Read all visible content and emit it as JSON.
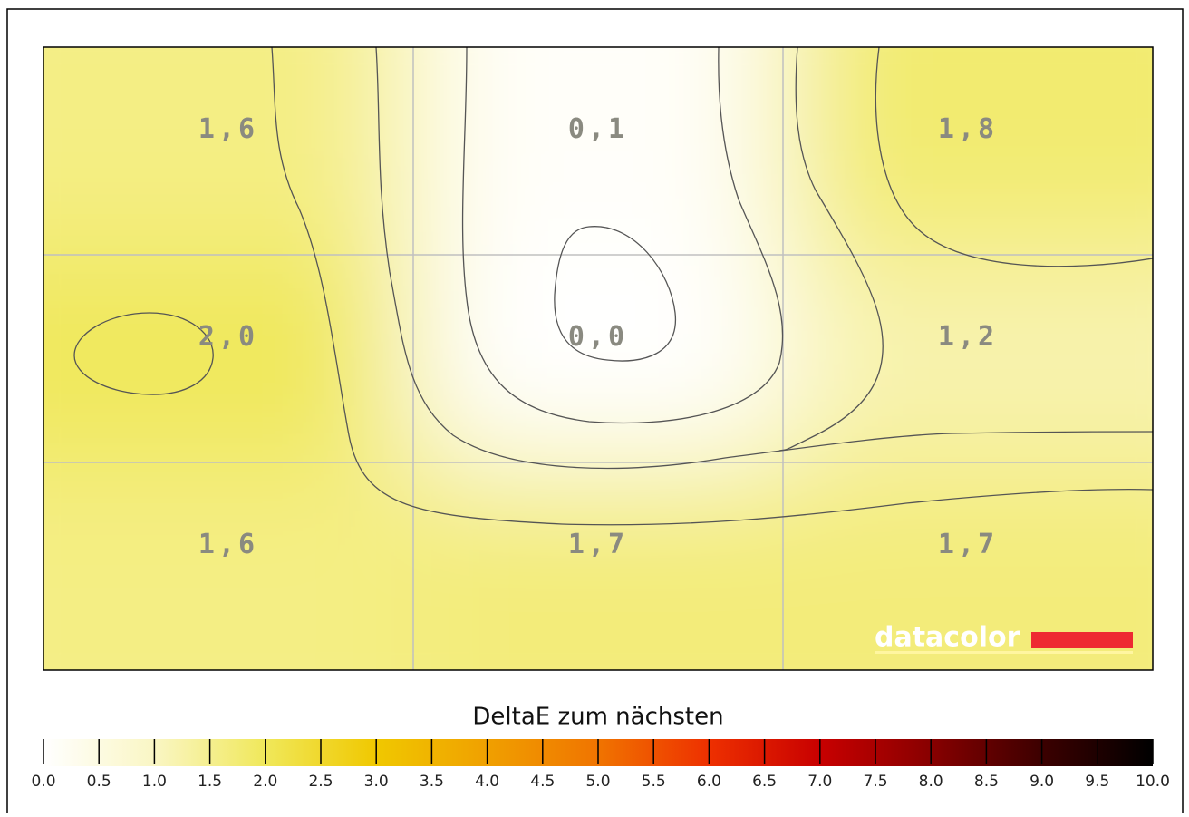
{
  "chart_data": {
    "type": "heatmap",
    "values": [
      [
        1.6,
        0.1,
        1.8
      ],
      [
        2.0,
        0.0,
        1.2
      ],
      [
        1.6,
        1.7,
        1.7
      ]
    ],
    "value_labels": [
      [
        "1,6",
        "0,1",
        "1,8"
      ],
      [
        "2,0",
        "0,0",
        "1,2"
      ],
      [
        "1,6",
        "1,7",
        "1,7"
      ]
    ],
    "grid": true,
    "watermark": "datacolor",
    "colorbar": {
      "title": "DeltaE zum nächsten",
      "lim": [
        0,
        10
      ],
      "colors": [
        "#ffffff",
        "#faf6c4",
        "#f0e85a",
        "#f0c800",
        "#f0a000",
        "#f07400",
        "#ee3000",
        "#c80000",
        "#880000",
        "#3c0000",
        "#000000"
      ],
      "ticks": [
        {
          "value": 0,
          "label": "0.0"
        },
        0.5,
        {
          "value": 1,
          "label": "1.0"
        },
        1.5,
        {
          "value": 2,
          "label": "2.0"
        },
        2.5,
        {
          "value": 3,
          "label": "3.0"
        },
        3.5,
        {
          "value": 4,
          "label": "4.0"
        },
        4.5,
        {
          "value": 5,
          "label": "5.0"
        },
        5.5,
        {
          "value": 6,
          "label": "6.0"
        },
        6.5,
        {
          "value": 7,
          "label": "7.0"
        },
        7.5,
        {
          "value": 8,
          "label": "8.0"
        },
        8.5,
        {
          "value": 9,
          "label": "9.0"
        },
        9.5,
        {
          "value": 10,
          "label": "10.0"
        }
      ]
    }
  }
}
